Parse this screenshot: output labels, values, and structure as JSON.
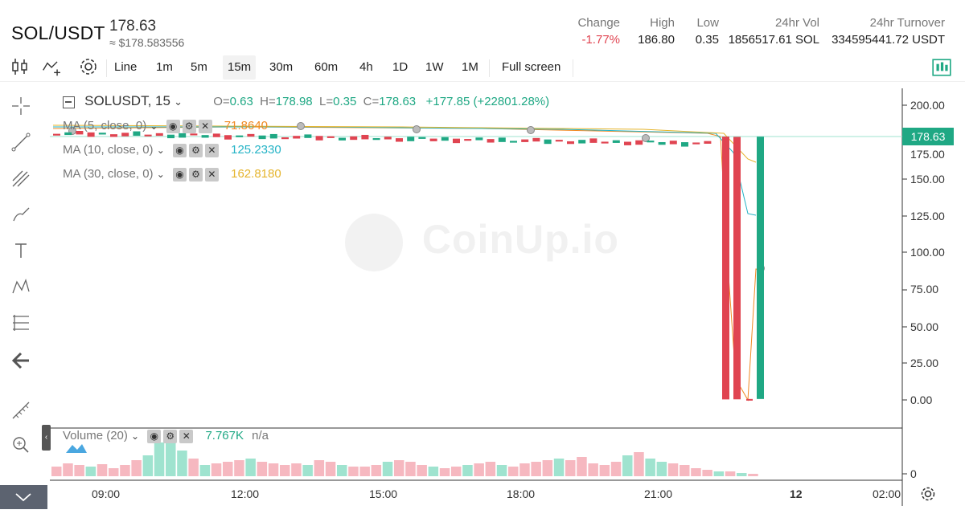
{
  "header": {
    "pair": "SOL/USDT",
    "price": "178.63",
    "approx": "≈ $178.583556",
    "stats": [
      {
        "label": "Change",
        "value": "-1.77%",
        "tone": "red"
      },
      {
        "label": "High",
        "value": "186.80",
        "tone": "normal"
      },
      {
        "label": "Low",
        "value": "0.35",
        "tone": "normal"
      },
      {
        "label": "24hr Vol",
        "value": "1856517.61 SOL",
        "tone": "normal"
      },
      {
        "label": "24hr Turnover",
        "value": "334595441.72 USDT",
        "tone": "normal"
      }
    ]
  },
  "toolbar": {
    "intervals": [
      "Line",
      "1m",
      "5m",
      "15m",
      "30m",
      "60m",
      "4h",
      "1D",
      "1W",
      "1M"
    ],
    "active_interval": "15m",
    "fullscreen_label": "Full screen"
  },
  "legend": {
    "symbol": "SOLUSDT, 15",
    "o_label": "O=",
    "o": "0.63",
    "h_label": "H=",
    "h": "178.98",
    "l_label": "L=",
    "l": "0.35",
    "c_label": "C=",
    "c": "178.63",
    "change": "+177.85 (+22801.28%)",
    "ma5_label": "MA (5, close, 0)",
    "ma5_value": "71.8640",
    "ma10_label": "MA (10, close, 0)",
    "ma10_value": "125.2330",
    "ma30_label": "MA (30, close, 0)",
    "ma30_value": "162.8180"
  },
  "volume_legend": {
    "label": "Volume (20)",
    "value": "7.767K",
    "extra": "n/a"
  },
  "watermark": "CoinUp.io",
  "last_price_tag": "178.63",
  "colors": {
    "up": "#1fa884",
    "down": "#e04451",
    "ma5": "#f08a24",
    "ma10": "#23b3c6",
    "ma30": "#e5b42c",
    "vol_up": "#9fe3cf",
    "vol_down": "#f6b8c0"
  },
  "chart_data": {
    "type": "candlestick",
    "y_ticks": [
      "200.00",
      "175.00",
      "150.00",
      "125.00",
      "100.00",
      "75.00",
      "50.00",
      "25.00",
      "0.00"
    ],
    "ylim": [
      0,
      200
    ],
    "x_ticks": [
      "09:00",
      "12:00",
      "15:00",
      "18:00",
      "21:00",
      "12",
      "02:00"
    ],
    "volume_y_tick": "0",
    "spike_candles": [
      {
        "open": 178.7,
        "close": 0.35,
        "high": 178.9,
        "low": 0.35,
        "dir": "down"
      },
      {
        "open": 178.5,
        "close": 0.4,
        "high": 178.8,
        "low": 0.35,
        "dir": "down"
      },
      {
        "open": 0.63,
        "close": 0.5,
        "high": 0.7,
        "low": 0.35,
        "dir": "down"
      },
      {
        "open": 0.63,
        "close": 178.63,
        "high": 178.98,
        "low": 0.35,
        "dir": "up"
      }
    ]
  }
}
